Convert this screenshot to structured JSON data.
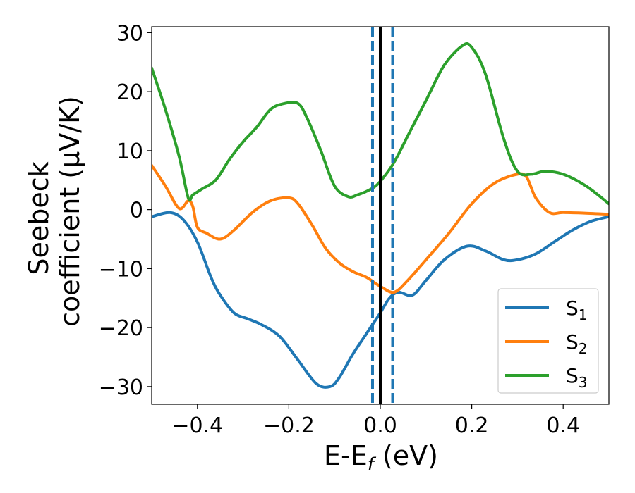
{
  "chart_data": {
    "type": "line",
    "xlabel_main": "E-E",
    "xlabel_sub": "f",
    "xlabel_unit": " (eV)",
    "ylabel_line1": "Seebeck",
    "ylabel_line2": "coefficient  (μV/K)",
    "xlim": [
      -0.5,
      0.5
    ],
    "ylim": [
      -33,
      31
    ],
    "xticks": [
      -0.4,
      -0.2,
      0.0,
      0.2,
      0.4
    ],
    "xtick_labels": [
      "−0.4",
      "−0.2",
      "0.0",
      "0.2",
      "0.4"
    ],
    "yticks": [
      -30,
      -20,
      -10,
      0,
      10,
      20,
      30
    ],
    "ytick_labels": [
      "−30",
      "−20",
      "−10",
      "0",
      "10",
      "20",
      "30"
    ],
    "grid": false,
    "legend_position": "lower-right",
    "vertical_lines": [
      {
        "x": 0.0,
        "style": "solid",
        "color": "#000000"
      },
      {
        "x": -0.017,
        "style": "dashed",
        "color": "#1f77b4"
      },
      {
        "x": 0.027,
        "style": "dashed",
        "color": "#1f77b4"
      }
    ],
    "series": [
      {
        "name": "S",
        "sub": "1",
        "color": "#1f77b4",
        "x": [
          -0.5,
          -0.46,
          -0.43,
          -0.4,
          -0.37,
          -0.35,
          -0.32,
          -0.29,
          -0.26,
          -0.22,
          -0.18,
          -0.14,
          -0.11,
          -0.09,
          -0.06,
          -0.03,
          0.0,
          0.02,
          0.04,
          0.07,
          0.1,
          0.14,
          0.19,
          0.23,
          0.27,
          0.3,
          0.34,
          0.38,
          0.42,
          0.46,
          0.5
        ],
        "y": [
          -1.2,
          -0.5,
          -1.8,
          -5.5,
          -11.5,
          -14.5,
          -17.5,
          -18.5,
          -19.5,
          -21.5,
          -25.5,
          -29.5,
          -30.0,
          -28.5,
          -24.5,
          -21.0,
          -17.5,
          -15.0,
          -14.0,
          -14.5,
          -12.0,
          -8.5,
          -6.2,
          -7.0,
          -8.5,
          -8.5,
          -7.5,
          -5.5,
          -3.5,
          -2.0,
          -1.2
        ]
      },
      {
        "name": "S",
        "sub": "2",
        "color": "#ff7f0e",
        "x": [
          -0.5,
          -0.47,
          -0.44,
          -0.42,
          -0.41,
          -0.4,
          -0.38,
          -0.35,
          -0.32,
          -0.28,
          -0.24,
          -0.2,
          -0.18,
          -0.15,
          -0.12,
          -0.09,
          -0.06,
          -0.03,
          0.0,
          0.03,
          0.06,
          0.1,
          0.15,
          0.2,
          0.25,
          0.3,
          0.32,
          0.34,
          0.37,
          0.4,
          0.45,
          0.5
        ],
        "y": [
          7.5,
          4.0,
          0.2,
          1.5,
          0.5,
          -3.0,
          -4.0,
          -5.0,
          -3.5,
          -0.5,
          1.5,
          2.0,
          1.0,
          -2.5,
          -6.5,
          -9.0,
          -10.5,
          -11.5,
          -13.0,
          -14.0,
          -12.0,
          -8.5,
          -4.0,
          1.0,
          4.5,
          6.0,
          5.5,
          2.0,
          -0.5,
          -0.5,
          -0.6,
          -0.8
        ]
      },
      {
        "name": "S",
        "sub": "3",
        "color": "#2ca02c",
        "x": [
          -0.5,
          -0.47,
          -0.44,
          -0.42,
          -0.41,
          -0.39,
          -0.36,
          -0.33,
          -0.3,
          -0.27,
          -0.24,
          -0.21,
          -0.18,
          -0.16,
          -0.13,
          -0.1,
          -0.07,
          -0.05,
          -0.02,
          0.0,
          0.03,
          0.06,
          0.1,
          0.14,
          0.18,
          0.2,
          0.23,
          0.27,
          0.3,
          0.33,
          0.36,
          0.4,
          0.45,
          0.5
        ],
        "y": [
          24.0,
          17.0,
          9.0,
          2.0,
          2.5,
          3.5,
          5.0,
          8.5,
          11.5,
          14.0,
          17.0,
          18.0,
          18.0,
          15.5,
          10.0,
          4.0,
          2.2,
          2.5,
          3.5,
          4.8,
          8.0,
          12.5,
          18.5,
          24.5,
          27.8,
          27.5,
          23.0,
          12.0,
          6.5,
          6.0,
          6.5,
          6.0,
          4.0,
          1.0
        ]
      }
    ]
  }
}
